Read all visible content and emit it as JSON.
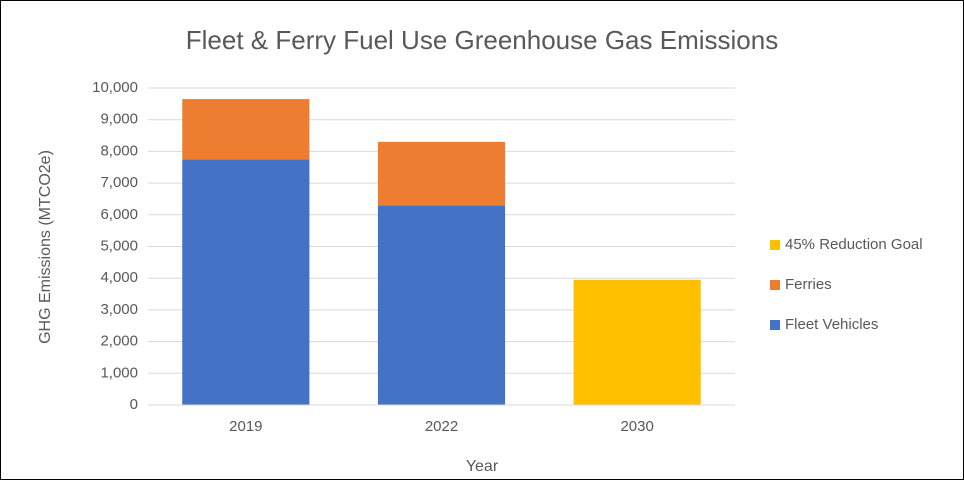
{
  "chart_data": {
    "type": "stacked_bar",
    "title": "Fleet & Ferry Fuel Use Greenhouse Gas Emissions",
    "x_label": "Year",
    "y_label": "GHG Emissions (MTCO2e)",
    "categories": [
      "2019",
      "2022",
      "2030"
    ],
    "series": [
      {
        "name": "Fleet Vehicles",
        "color": "#4472c4",
        "values": [
          7750,
          6300,
          null
        ]
      },
      {
        "name": "Ferries",
        "color": "#ed7d31",
        "values": [
          1900,
          2000,
          null
        ]
      },
      {
        "name": "45% Reduction Goal",
        "color": "#ffc000",
        "values": [
          null,
          null,
          3950
        ]
      }
    ],
    "ylim": [
      0,
      10000
    ],
    "yticks": [
      0,
      {
        "value": 1000,
        "label": "1,000"
      },
      {
        "value": 2000,
        "label": "2,000"
      },
      {
        "value": 3000,
        "label": "3,000"
      },
      {
        "value": 4000,
        "label": "4,000"
      },
      {
        "value": 5000,
        "label": "5,000"
      },
      {
        "value": 6000,
        "label": "6,000"
      },
      {
        "value": 7000,
        "label": "7,000"
      },
      {
        "value": 8000,
        "label": "8,000"
      },
      {
        "value": 9000,
        "label": "9,000"
      },
      {
        "value": 10000,
        "label": "10,000"
      }
    ],
    "grid": true,
    "legend": "right"
  }
}
